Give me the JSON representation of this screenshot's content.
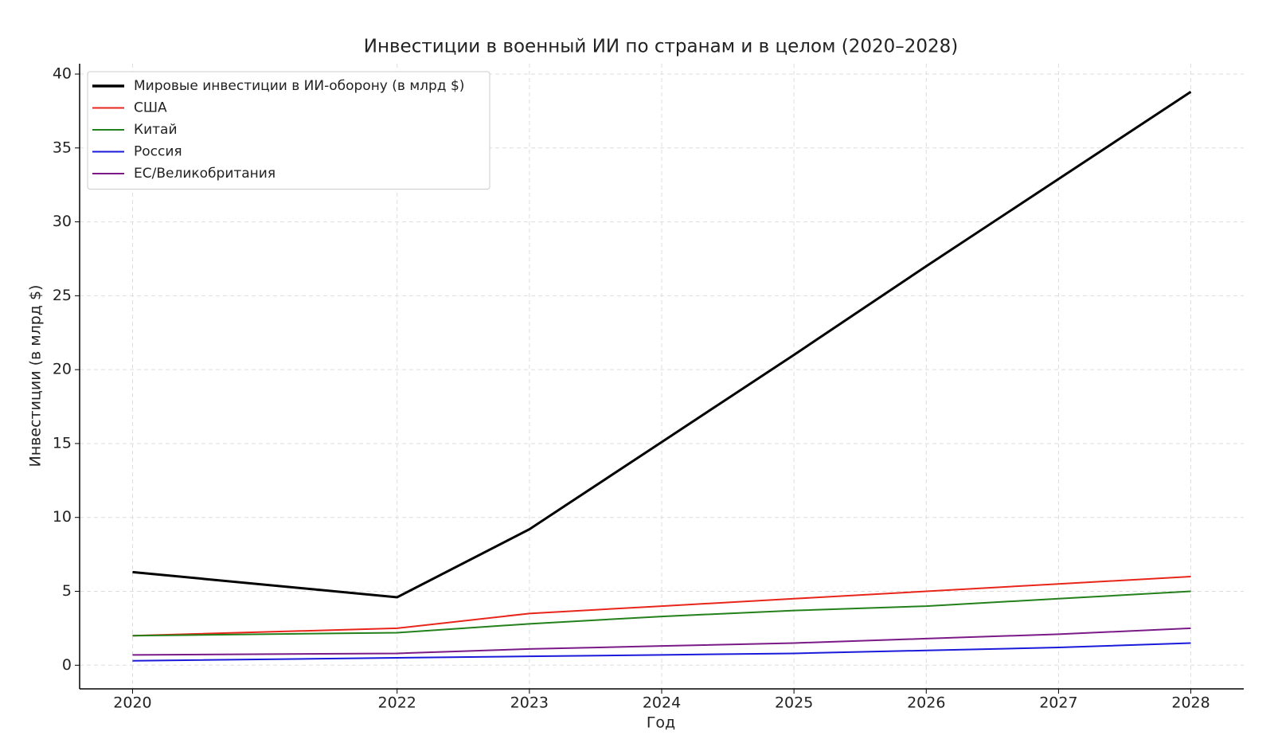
{
  "chart_data": {
    "type": "line",
    "title": "Инвестиции в военный ИИ по странам и в целом (2020–2028)",
    "x_label": "Год",
    "y_label": "Инвестиции (в млрд $)",
    "x": [
      2020,
      2022,
      2023,
      2024,
      2025,
      2026,
      2027,
      2028
    ],
    "series": [
      {
        "name": "Мировые инвестиции в ИИ-оборону (в млрд $)",
        "color": "#000000",
        "values": [
          6.3,
          4.6,
          9.2,
          15.1,
          21.0,
          27.0,
          32.9,
          38.8
        ]
      },
      {
        "name": "США",
        "color": "#e8251b",
        "values": [
          2.0,
          2.5,
          3.5,
          4.0,
          4.5,
          5.0,
          5.5,
          6.0
        ]
      },
      {
        "name": "Китай",
        "color": "#23801b",
        "values": [
          2.0,
          2.2,
          2.8,
          3.3,
          3.7,
          4.0,
          4.5,
          5.0
        ]
      },
      {
        "name": "Россия",
        "color": "#1a1adb",
        "values": [
          0.3,
          0.5,
          0.6,
          0.7,
          0.8,
          1.0,
          1.2,
          1.5
        ]
      },
      {
        "name": "ЕС/Великобритания",
        "color": "#7a1a86",
        "values": [
          0.7,
          0.8,
          1.1,
          1.3,
          1.5,
          1.8,
          2.1,
          2.5
        ]
      }
    ],
    "xlim": [
      2019.6,
      2028.4
    ],
    "xticks": [
      2020,
      2022,
      2023,
      2024,
      2025,
      2026,
      2027,
      2028
    ],
    "ylim": [
      -1.6,
      40.7
    ],
    "yticks": [
      0,
      5,
      10,
      15,
      20,
      25,
      30,
      35,
      40
    ],
    "grid": true,
    "legend": "upper left"
  }
}
